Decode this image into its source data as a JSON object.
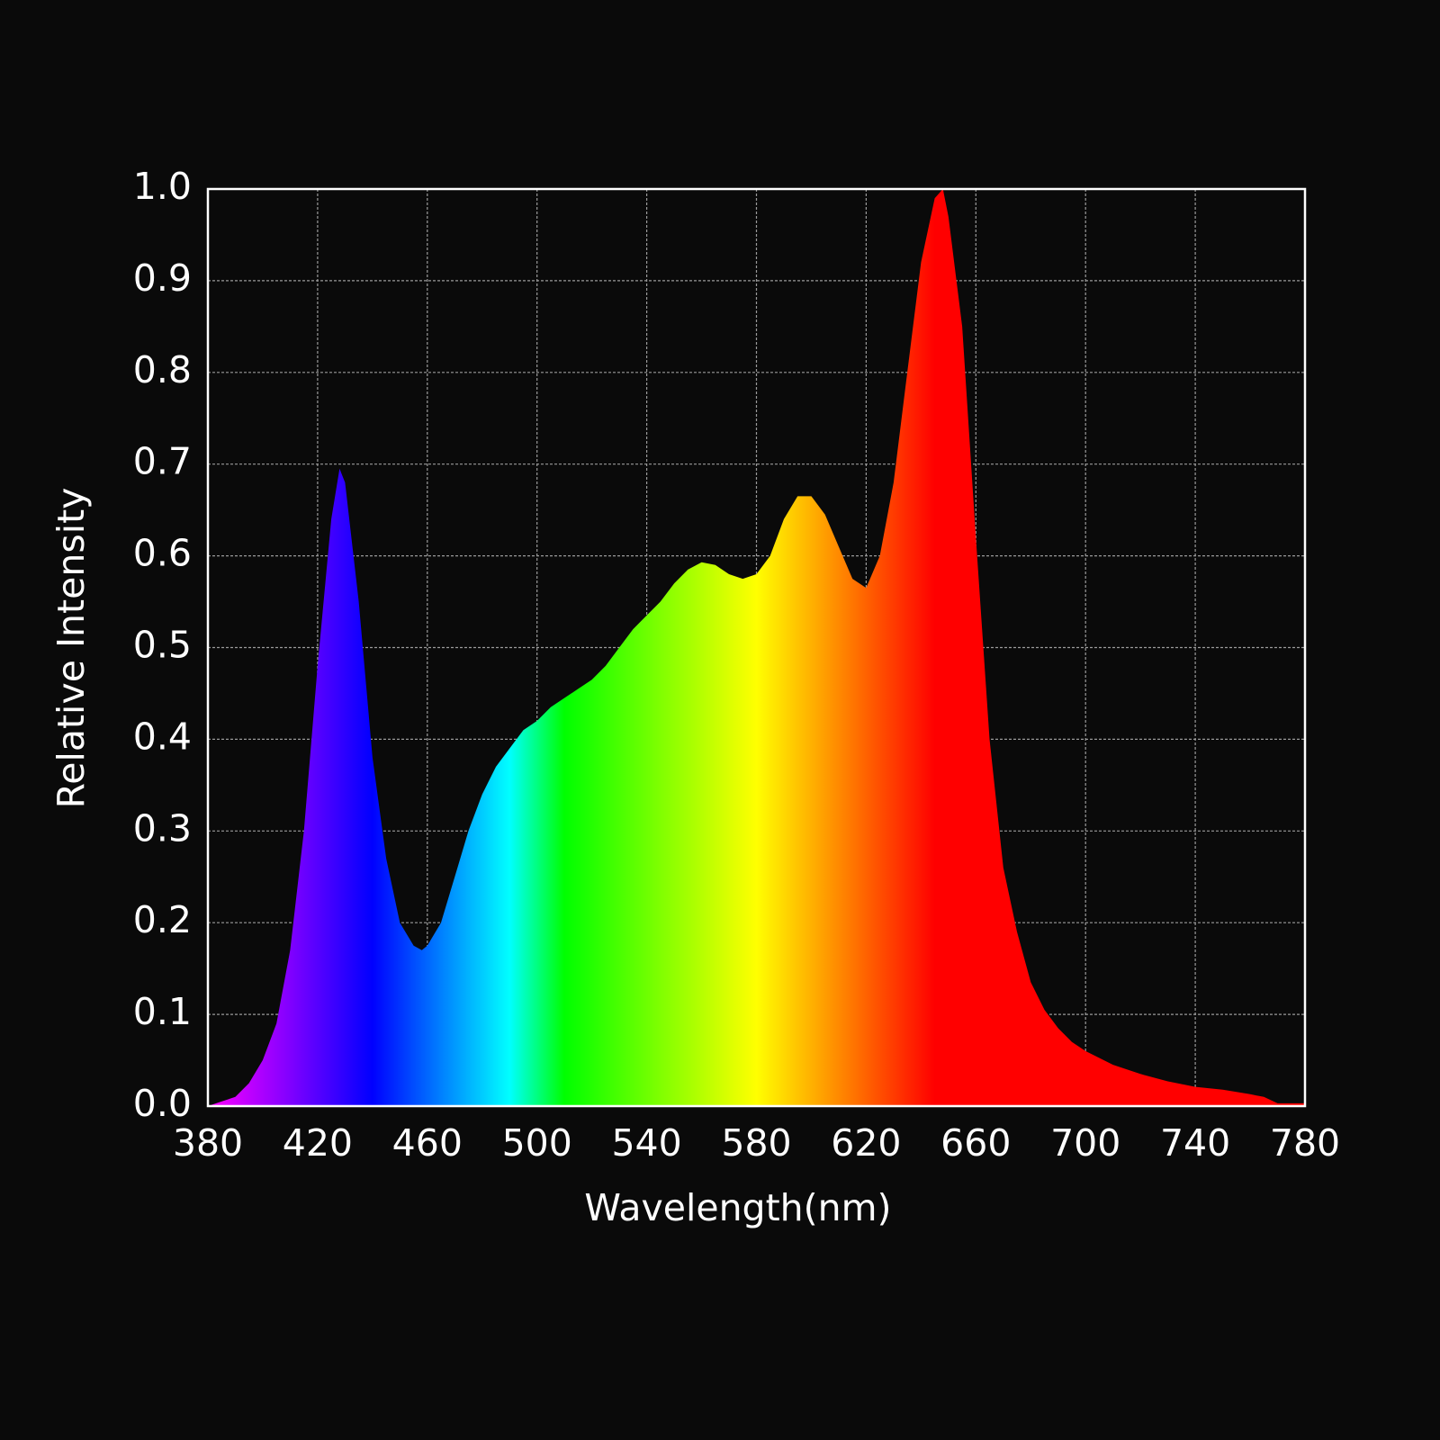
{
  "chart_data": {
    "type": "area",
    "x_label": "Wavelength(nm)",
    "y_label": "Relative Intensity",
    "x": [
      380,
      385,
      390,
      395,
      400,
      405,
      410,
      415,
      420,
      425,
      428,
      430,
      435,
      440,
      445,
      450,
      455,
      458,
      460,
      465,
      470,
      475,
      480,
      485,
      490,
      495,
      500,
      505,
      510,
      515,
      520,
      525,
      530,
      535,
      540,
      545,
      550,
      555,
      560,
      565,
      570,
      575,
      580,
      585,
      590,
      595,
      600,
      605,
      610,
      615,
      620,
      625,
      630,
      635,
      640,
      645,
      648,
      650,
      655,
      660,
      665,
      670,
      675,
      680,
      685,
      690,
      695,
      700,
      710,
      720,
      730,
      740,
      750,
      760,
      765,
      770,
      780
    ],
    "values": [
      0.0,
      0.005,
      0.01,
      0.025,
      0.05,
      0.09,
      0.17,
      0.3,
      0.48,
      0.64,
      0.695,
      0.68,
      0.55,
      0.38,
      0.27,
      0.2,
      0.175,
      0.17,
      0.175,
      0.2,
      0.25,
      0.3,
      0.34,
      0.37,
      0.39,
      0.41,
      0.42,
      0.435,
      0.445,
      0.455,
      0.465,
      0.48,
      0.5,
      0.52,
      0.535,
      0.55,
      0.57,
      0.585,
      0.593,
      0.59,
      0.58,
      0.575,
      0.58,
      0.6,
      0.64,
      0.665,
      0.665,
      0.645,
      0.61,
      0.575,
      0.565,
      0.6,
      0.68,
      0.8,
      0.92,
      0.99,
      1.0,
      0.97,
      0.85,
      0.62,
      0.4,
      0.26,
      0.19,
      0.135,
      0.105,
      0.085,
      0.07,
      0.06,
      0.045,
      0.035,
      0.027,
      0.021,
      0.018,
      0.013,
      0.01,
      0.003,
      0.003
    ],
    "xlim": [
      380,
      780
    ],
    "xticks": [
      380,
      420,
      460,
      500,
      540,
      580,
      620,
      660,
      700,
      740,
      780
    ],
    "ylim": [
      0,
      1
    ],
    "yticks": [
      {
        "value": 0,
        "label": "0.0"
      },
      0.1,
      0.2,
      0.3,
      0.4,
      0.5,
      0.6,
      0.7,
      0.8,
      0.9,
      {
        "value": 1,
        "label": "1.0"
      }
    ],
    "grid": true,
    "fill": "spectrum",
    "frame_color": "#ffffff"
  }
}
